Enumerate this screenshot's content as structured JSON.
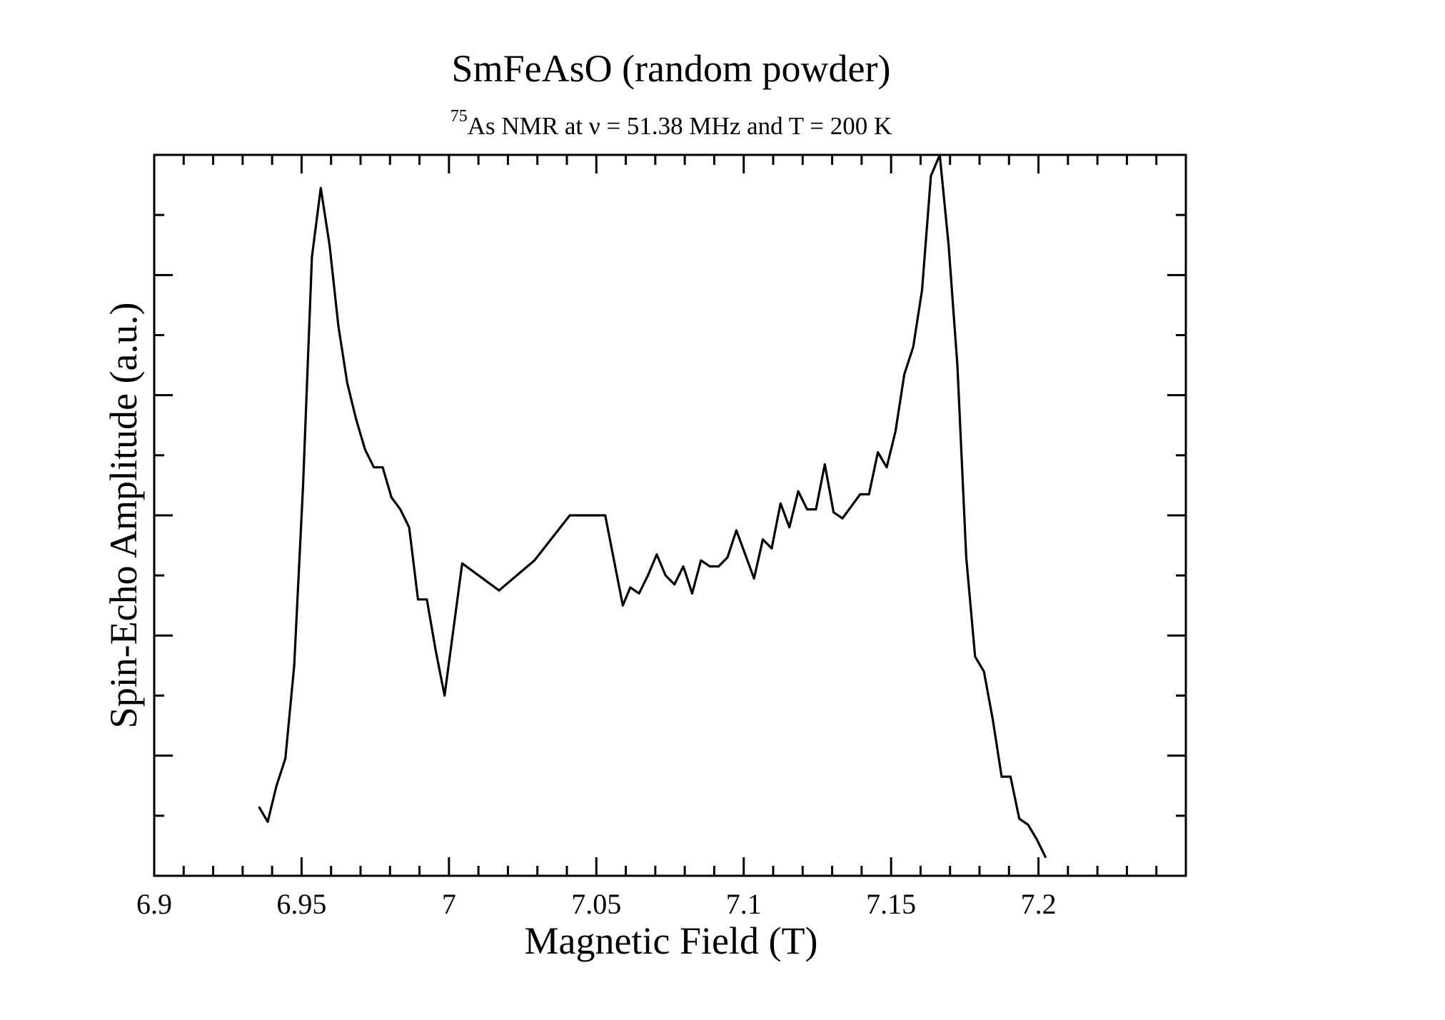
{
  "chart_data": {
    "type": "line",
    "title": "SmFeAsO (random powder)",
    "subtitle": {
      "superscript": "75",
      "text": "As NMR at ν = 51.38 MHz and T = 200 K"
    },
    "xlabel": "Magnetic Field (T)",
    "ylabel": "Spin-Echo Amplitude (a.u.)",
    "xlim": [
      6.9,
      7.25
    ],
    "ylim": [
      0,
      12
    ],
    "x_ticks": [
      6.9,
      6.95,
      7.0,
      7.05,
      7.1,
      7.15,
      7.2
    ],
    "x_tick_labels": [
      "6.9",
      "6.95",
      "7",
      "7.05",
      "7.1",
      "7.15",
      "7.2"
    ],
    "x_minor_step": 0.01,
    "y_major_step": 2,
    "y_minor_step": 1,
    "grid": false,
    "series_color": "#000000",
    "x": [
      6.9355,
      6.9385,
      6.9415,
      6.9445,
      6.9475,
      6.9505,
      6.9535,
      6.9565,
      6.9595,
      6.9625,
      6.9655,
      6.9685,
      6.9715,
      6.9745,
      6.9775,
      6.9805,
      6.9835,
      6.9865,
      6.9895,
      6.9925,
      6.9955,
      6.9985,
      7.0045,
      7.017,
      7.029,
      7.041,
      7.053,
      7.059,
      7.0615,
      7.0645,
      7.0675,
      7.0705,
      7.0735,
      7.0765,
      7.0795,
      7.0825,
      7.0855,
      7.0885,
      7.0915,
      7.0945,
      7.0975,
      7.1005,
      7.1035,
      7.1065,
      7.1095,
      7.1125,
      7.1155,
      7.1185,
      7.1215,
      7.1245,
      7.1275,
      7.1305,
      7.1335,
      7.1365,
      7.1395,
      7.1425,
      7.1455,
      7.1485,
      7.1515,
      7.1545,
      7.1575,
      7.1605,
      7.1635,
      7.1665,
      7.1695,
      7.1725,
      7.1755,
      7.1785,
      7.1815,
      7.1845,
      7.1875,
      7.1905,
      7.1935,
      7.1965,
      7.1995,
      7.2025
    ],
    "y": [
      1.15,
      0.9,
      1.5,
      1.95,
      3.5,
      6.5,
      10.3,
      11.45,
      10.5,
      9.15,
      8.2,
      7.6,
      7.1,
      6.8,
      6.8,
      6.3,
      6.1,
      5.8,
      4.6,
      4.6,
      3.75,
      3.0,
      5.2,
      4.75,
      5.25,
      6.0,
      6.0,
      4.5,
      4.8,
      4.7,
      5.0,
      5.35,
      5.0,
      4.85,
      5.15,
      4.7,
      5.25,
      5.15,
      5.15,
      5.3,
      5.75,
      5.35,
      4.95,
      5.6,
      5.45,
      6.2,
      5.8,
      6.4,
      6.1,
      6.1,
      6.85,
      6.05,
      5.95,
      6.15,
      6.35,
      6.35,
      7.05,
      6.8,
      7.4,
      8.35,
      8.8,
      9.75,
      11.65,
      12.0,
      10.5,
      8.5,
      5.3,
      3.65,
      3.4,
      2.6,
      1.65,
      1.65,
      0.95,
      0.85,
      0.6,
      0.3
    ]
  }
}
